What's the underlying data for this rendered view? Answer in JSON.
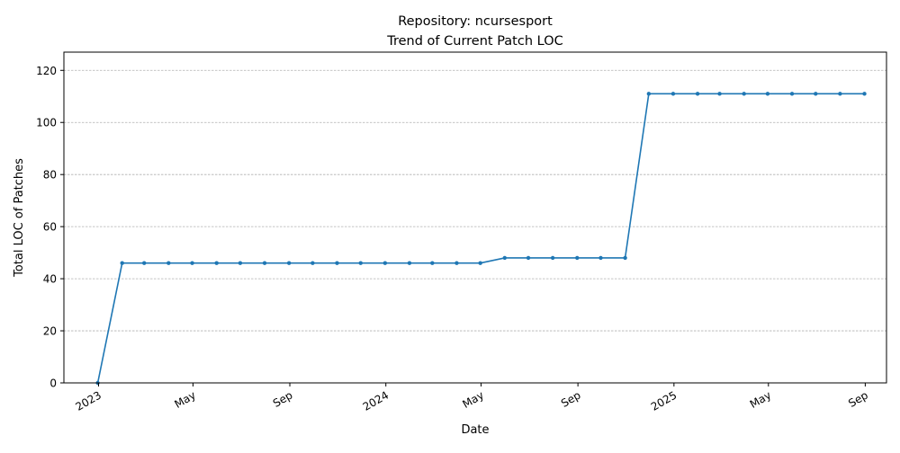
{
  "chart_data": {
    "type": "line",
    "title": [
      "Repository: ncursesport",
      "Trend of Current Patch LOC"
    ],
    "xlabel": "Date",
    "ylabel": "Total LOC of Patches",
    "ylim": [
      0,
      127
    ],
    "xlim": [
      "2022-11-18",
      "2025-09-28"
    ],
    "grid": "y-dashed",
    "color": "#1f77b4",
    "y_ticks": [
      0,
      20,
      40,
      60,
      80,
      100,
      120
    ],
    "x_ticks": [
      {
        "date": "2023-01-01",
        "label": "2023"
      },
      {
        "date": "2023-05-01",
        "label": "May"
      },
      {
        "date": "2023-09-01",
        "label": "Sep"
      },
      {
        "date": "2024-01-01",
        "label": "2024"
      },
      {
        "date": "2024-05-01",
        "label": "May"
      },
      {
        "date": "2024-09-01",
        "label": "Sep"
      },
      {
        "date": "2025-01-01",
        "label": "2025"
      },
      {
        "date": "2025-05-01",
        "label": "May"
      },
      {
        "date": "2025-09-01",
        "label": "Sep"
      }
    ],
    "series": [
      {
        "x": [
          "2022-12-31",
          "2023-01-31",
          "2023-02-28",
          "2023-03-31",
          "2023-04-30",
          "2023-05-31",
          "2023-06-30",
          "2023-07-31",
          "2023-08-31",
          "2023-09-30",
          "2023-10-31",
          "2023-11-30",
          "2023-12-31",
          "2024-01-31",
          "2024-02-29",
          "2024-03-31",
          "2024-04-30",
          "2024-05-31",
          "2024-06-30",
          "2024-07-31",
          "2024-08-31",
          "2024-09-30",
          "2024-10-31",
          "2024-11-30",
          "2024-12-31",
          "2025-01-31",
          "2025-02-28",
          "2025-03-31",
          "2025-04-30",
          "2025-05-31",
          "2025-06-30",
          "2025-07-31",
          "2025-08-31"
        ],
        "y": [
          0,
          46,
          46,
          46,
          46,
          46,
          46,
          46,
          46,
          46,
          46,
          46,
          46,
          46,
          46,
          46,
          46,
          48,
          48,
          48,
          48,
          48,
          48,
          111,
          111,
          111,
          111,
          111,
          111,
          111,
          111,
          111,
          111
        ]
      }
    ]
  }
}
